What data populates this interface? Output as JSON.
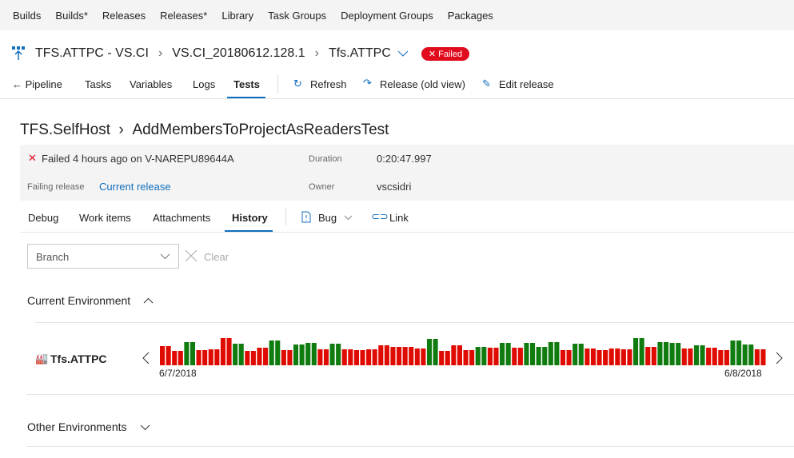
{
  "topnav": [
    "Builds",
    "Builds*",
    "Releases",
    "Releases*",
    "Library",
    "Task Groups",
    "Deployment Groups",
    "Packages"
  ],
  "breadcrumb": {
    "pipeline": "TFS.ATTPC - VS.CI",
    "release": "VS.CI_20180612.128.1",
    "environment": "Tfs.ATTPC",
    "status": "Failed"
  },
  "tabs": {
    "back": "Pipeline",
    "items": [
      "Tasks",
      "Variables",
      "Logs",
      "Tests"
    ],
    "selected": "Tests",
    "refresh": "Refresh",
    "old_view": "Release (old view)",
    "edit": "Edit release"
  },
  "test": {
    "title_parent": "TFS.SelfHost",
    "title": "AddMembersToProjectAsReadersTest",
    "summary": "Failed 4 hours ago on V-NAREPU89644A",
    "duration_label": "Duration",
    "duration": "0:20:47.997",
    "failing_label": "Failing release",
    "failing_value": "Current release",
    "owner_label": "Owner",
    "owner": "vscsidri"
  },
  "subtabs": {
    "items": [
      "Debug",
      "Work items",
      "Attachments",
      "History"
    ],
    "selected": "History",
    "bug": "Bug",
    "link": "Link"
  },
  "filter": {
    "branch_placeholder": "Branch",
    "clear": "Clear"
  },
  "sections": {
    "current": "Current Environment",
    "other": "Other Environments"
  },
  "colors": {
    "passed": "#107c10",
    "failed": "#e00b00",
    "accent": "#106ebe"
  },
  "chart_data": {
    "type": "bar",
    "environment": "Tfs.ATTPC",
    "start_label": "6/7/2018",
    "end_label": "6/8/2018",
    "outcomes": [
      "F",
      "F",
      "F",
      "F",
      "P",
      "P",
      "F",
      "F",
      "F",
      "F",
      "F",
      "F",
      "P",
      "P",
      "F",
      "F",
      "F",
      "F",
      "P",
      "P",
      "F",
      "F",
      "P",
      "P",
      "P",
      "P",
      "F",
      "F",
      "P",
      "P",
      "F",
      "F",
      "F",
      "F",
      "F",
      "F",
      "F",
      "F",
      "F",
      "F",
      "F",
      "F",
      "F",
      "F",
      "P",
      "P",
      "F",
      "F",
      "F",
      "F",
      "F",
      "F",
      "P",
      "P",
      "F",
      "F",
      "P",
      "P",
      "F",
      "F",
      "P",
      "P",
      "P",
      "P",
      "P",
      "P",
      "F",
      "F",
      "P",
      "P",
      "F",
      "F",
      "F",
      "F",
      "F",
      "F",
      "F",
      "F",
      "P",
      "P",
      "F",
      "F",
      "P",
      "P",
      "P",
      "P",
      "F",
      "F",
      "P",
      "P",
      "F",
      "F",
      "F",
      "F",
      "P",
      "P",
      "P",
      "P",
      "F",
      "F"
    ],
    "values": [
      24,
      24,
      18,
      18,
      29,
      29,
      19,
      19,
      20,
      20,
      34,
      34,
      27,
      27,
      18,
      18,
      22,
      22,
      31,
      31,
      19,
      19,
      26,
      26,
      28,
      28,
      20,
      20,
      27,
      27,
      20,
      20,
      19,
      19,
      20,
      20,
      25,
      25,
      23,
      23,
      23,
      23,
      21,
      21,
      33,
      33,
      18,
      18,
      25,
      25,
      19,
      19,
      23,
      23,
      22,
      22,
      28,
      28,
      22,
      22,
      28,
      28,
      23,
      23,
      29,
      29,
      19,
      19,
      27,
      27,
      21,
      21,
      19,
      19,
      21,
      21,
      20,
      20,
      34,
      34,
      23,
      23,
      29,
      29,
      28,
      28,
      21,
      21,
      25,
      25,
      22,
      22,
      19,
      19,
      31,
      31,
      26,
      26,
      20,
      20
    ]
  }
}
